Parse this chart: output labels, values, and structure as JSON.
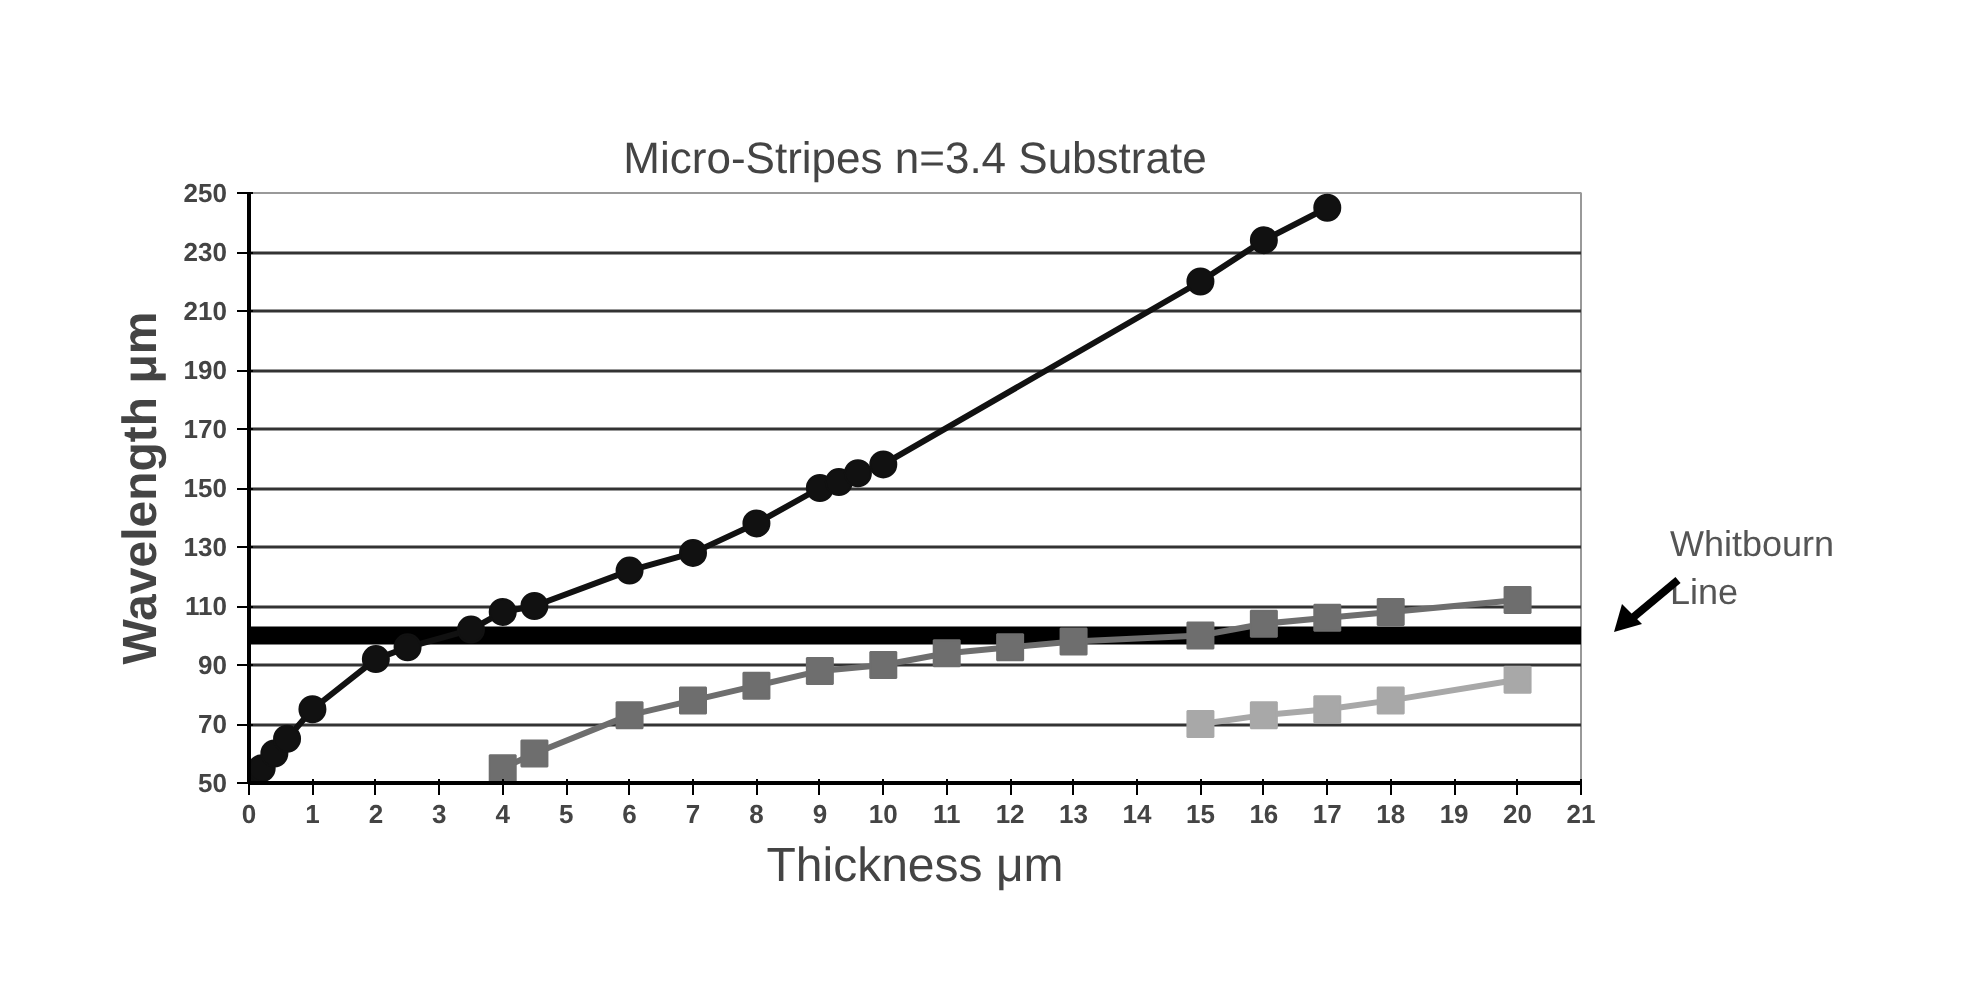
{
  "chart_data": {
    "type": "line",
    "title": "Micro-Stripes n=3.4 Substrate",
    "xlabel": "Thickness μm",
    "ylabel": "Wavelength μm",
    "xlim": [
      0,
      21
    ],
    "xticks": [
      0,
      1,
      2,
      3,
      4,
      5,
      6,
      7,
      8,
      9,
      10,
      11,
      12,
      13,
      14,
      15,
      16,
      17,
      18,
      19,
      20,
      21
    ],
    "ylim": [
      50,
      250
    ],
    "yticks": [
      50,
      70,
      90,
      110,
      130,
      150,
      170,
      190,
      210,
      230,
      250
    ],
    "grid": "y",
    "series": [
      {
        "color": "#111111",
        "marker": "circle",
        "x": [
          0,
          0.2,
          0.4,
          0.6,
          1,
          2,
          2.5,
          3.5,
          4,
          4.5,
          6,
          7,
          8,
          9,
          9.3,
          9.6,
          10,
          15,
          16,
          17
        ],
        "values": [
          50,
          55,
          60,
          65,
          75,
          92,
          96,
          102,
          108,
          110,
          122,
          128,
          138,
          150,
          152,
          155,
          158,
          220,
          234,
          245
        ]
      },
      {
        "color": "#6e6e6e",
        "marker": "square",
        "x": [
          4,
          4.5,
          6,
          7,
          8,
          9,
          10,
          11,
          12,
          13,
          15,
          16,
          17,
          18,
          20
        ],
        "values": [
          55,
          60,
          73,
          78,
          83,
          88,
          90,
          94,
          96,
          98,
          100,
          104,
          106,
          108,
          112
        ]
      },
      {
        "color": "#a8a8a8",
        "marker": "square",
        "x": [
          15,
          16,
          17,
          18,
          20
        ],
        "values": [
          70,
          73,
          75,
          78,
          85
        ]
      }
    ],
    "ref_lines": [
      {
        "axis": "y",
        "value": 100,
        "label": "Whitbourn Line",
        "color": "#000000"
      }
    ]
  }
}
